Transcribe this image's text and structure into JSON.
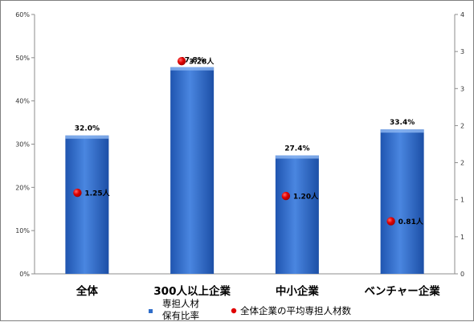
{
  "chart_data": {
    "type": "bar",
    "categories": [
      "全体",
      "300人以上企業",
      "中小企業",
      "ベンチャー企業"
    ],
    "series": [
      {
        "name": "専担人材\n保有比率",
        "type": "bar",
        "axis": "left",
        "values": [
          32.0,
          47.8,
          27.4,
          33.4
        ],
        "labels": [
          "32.0%",
          "47.8%",
          "27.4%",
          "33.4%"
        ],
        "color": "#2f6dc9"
      },
      {
        "name": "全体企業の平均専担人材数",
        "type": "scatter",
        "axis": "right",
        "values": [
          1.25,
          3.28,
          1.2,
          0.81
        ],
        "labels": [
          "1.25人",
          "3.28人",
          "1.20人",
          "0.81人"
        ],
        "color": "#e00000"
      }
    ],
    "y_left": {
      "min": 0,
      "max": 60,
      "ticks": [
        "0%",
        "10%",
        "20%",
        "30%",
        "40%",
        "50%",
        "60%"
      ]
    },
    "y_right": {
      "min": 0,
      "max": 4,
      "ticks": [
        "0",
        "1",
        "1",
        "2",
        "2",
        "3",
        "3",
        "4"
      ]
    },
    "legend": {
      "position": "bottom",
      "bar_label_lines": [
        "専担人材",
        "保有比率"
      ],
      "scatter_label": "全体企業の平均専担人材数"
    },
    "grid": false
  }
}
